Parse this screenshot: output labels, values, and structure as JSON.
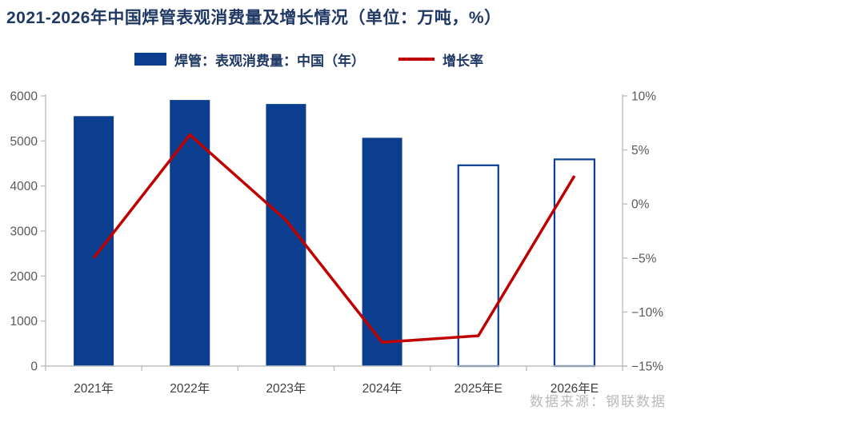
{
  "title": "2021-2026年中国焊管表观消费量及增长情况（单位：万吨，%）",
  "legend": {
    "bar_label": "焊管：表观消费量：中国（年）",
    "line_label": "增长率"
  },
  "source": "数据来源：钢联数据",
  "colors": {
    "bar": "#0b3e8f",
    "line": "#c00000",
    "title": "#1f3864",
    "legend_text": "#1f3864",
    "axis": "#bfbfbf",
    "tick_label": "#595959",
    "x_label": "#3f3f3f",
    "source_text": "#b9b9b9"
  },
  "chart_data": {
    "type": "combo_bar_line",
    "title": "2021-2026年中国焊管表观消费量及增长情况（单位：万吨，%）",
    "categories": [
      "2021年",
      "2022年",
      "2023年",
      "2024年",
      "2025年E",
      "2026年E"
    ],
    "series": [
      {
        "name": "焊管：表观消费量：中国（年）",
        "type": "bar",
        "axis": "left",
        "values": [
          5550,
          5910,
          5820,
          5070,
          4460,
          4590
        ],
        "bar_style": [
          "solid",
          "solid",
          "solid",
          "solid",
          "outline",
          "outline"
        ]
      },
      {
        "name": "增长率",
        "type": "line",
        "axis": "right",
        "values": [
          -5.0,
          6.4,
          -1.5,
          -12.8,
          -12.2,
          2.6
        ]
      }
    ],
    "left_axis": {
      "min": 0,
      "max": 6000,
      "step": 1000,
      "tick_labels": [
        "0",
        "1000",
        "2000",
        "3000",
        "4000",
        "5000",
        "6000"
      ]
    },
    "right_axis": {
      "min": -15,
      "max": 10,
      "step": 5,
      "tick_labels": [
        "−15%",
        "−10%",
        "−5%",
        "0%",
        "5%",
        "10%"
      ]
    },
    "grid": false,
    "legend_position": "top"
  }
}
